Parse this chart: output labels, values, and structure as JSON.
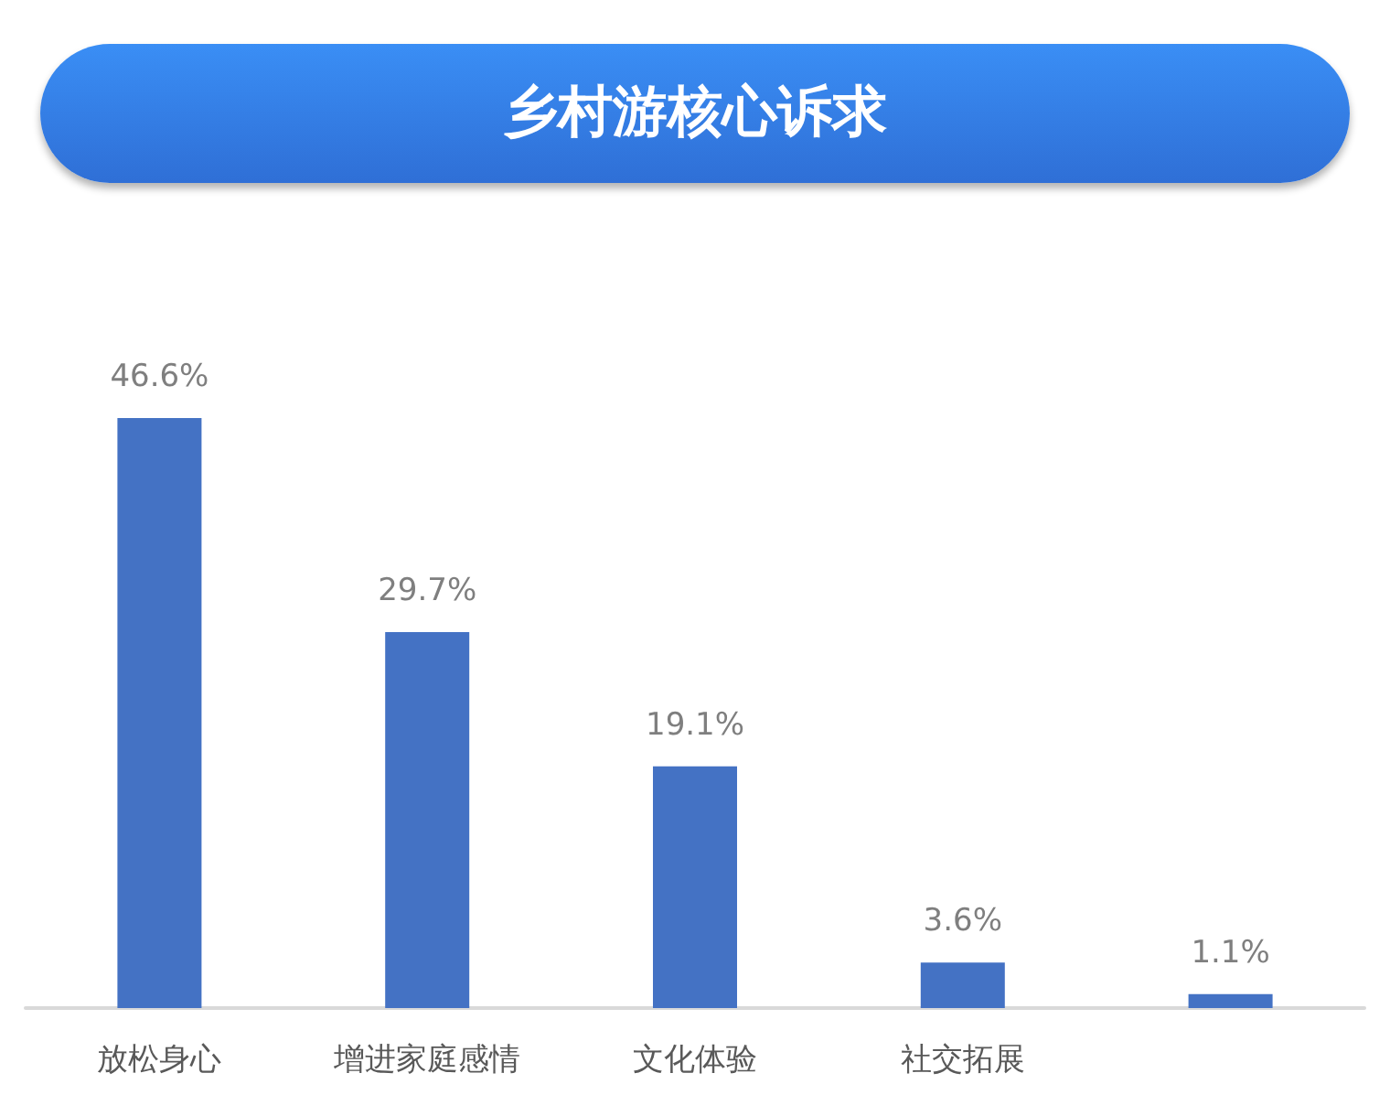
{
  "chart_data": {
    "type": "bar",
    "title": "乡村游核心诉求",
    "categories": [
      "放松身心",
      "增进家庭感情",
      "文化体验",
      "社交拓展",
      null
    ],
    "values": [
      46.6,
      29.7,
      19.1,
      3.6,
      1.1
    ],
    "value_labels": [
      "46.6%",
      "29.7%",
      "19.1%",
      "3.6%",
      "1.1%"
    ],
    "color": "#4472c4"
  }
}
